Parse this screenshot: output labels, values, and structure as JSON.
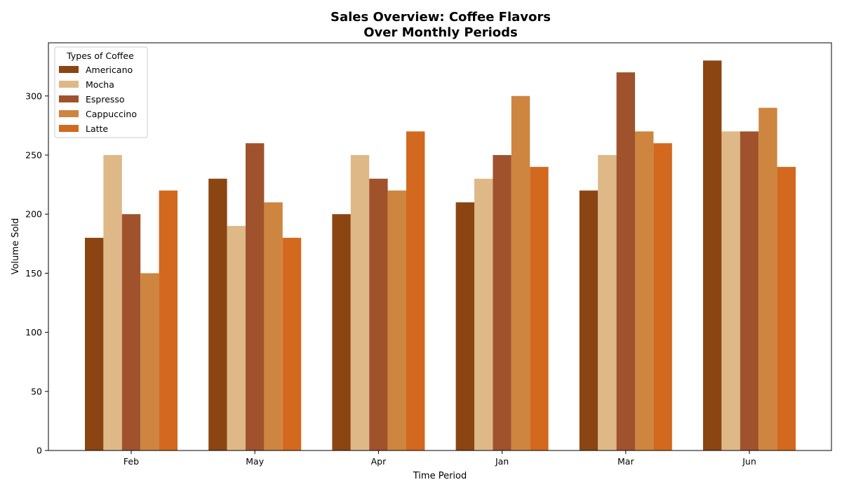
{
  "chart_data": {
    "type": "bar",
    "title": [
      "Sales Overview: Coffee Flavors",
      "Over Monthly Periods"
    ],
    "xlabel": "Time Period",
    "ylabel": "Volume Sold",
    "categories": [
      "Feb",
      "May",
      "Apr",
      "Jan",
      "Mar",
      "Jun"
    ],
    "ylim": [
      0,
      345
    ],
    "yticks": [
      0,
      50,
      100,
      150,
      200,
      250,
      300
    ],
    "grid": false,
    "legend": {
      "title": "Types of Coffee",
      "placement": "top-left"
    },
    "series": [
      {
        "name": "Americano",
        "color": "#8B4513",
        "values": [
          180,
          230,
          200,
          210,
          220,
          330
        ]
      },
      {
        "name": "Mocha",
        "color": "#DEB887",
        "values": [
          250,
          190,
          250,
          230,
          250,
          270
        ]
      },
      {
        "name": "Espresso",
        "color": "#A0522D",
        "values": [
          200,
          260,
          230,
          250,
          320,
          270
        ]
      },
      {
        "name": "Cappuccino",
        "color": "#CD853F",
        "values": [
          150,
          210,
          220,
          300,
          270,
          290
        ]
      },
      {
        "name": "Latte",
        "color": "#D2691E",
        "values": [
          220,
          180,
          270,
          240,
          260,
          240
        ]
      }
    ]
  }
}
